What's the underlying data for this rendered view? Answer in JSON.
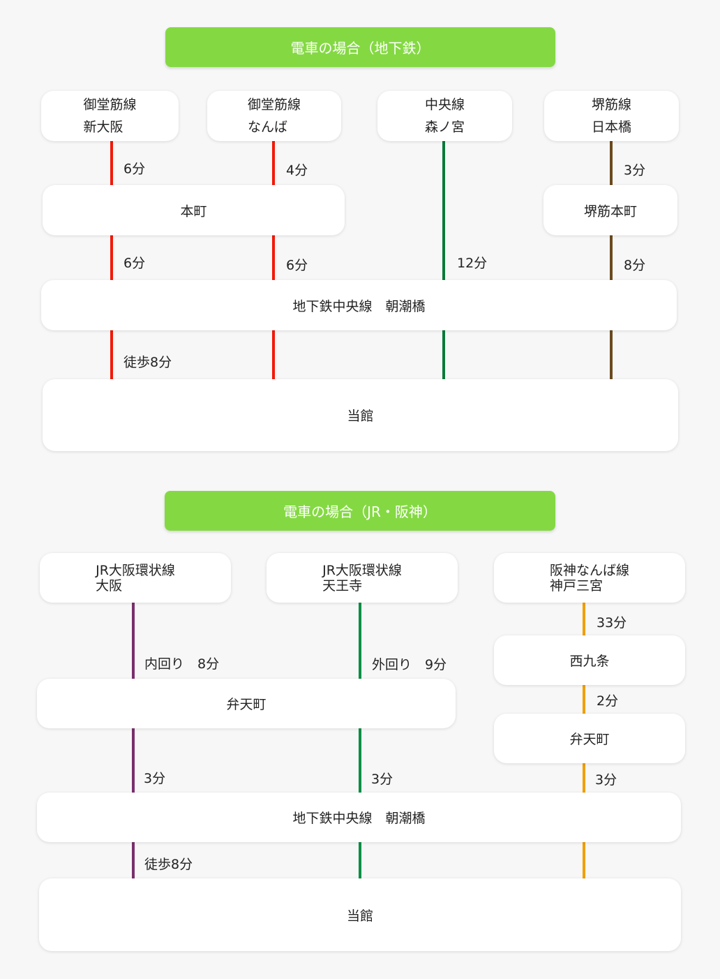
{
  "colors": {
    "header": "#84d943",
    "midosuji": "#f21a0a",
    "chuo": "#0a7a3a",
    "sakaisuji": "#6b4a1e",
    "jr_inner": "#7a2f6e",
    "jr_outer": "#0c8f45",
    "hanshin": "#f0a000"
  },
  "subway": {
    "title": "電車の場合（地下鉄）",
    "origins": [
      {
        "line": "御堂筋線",
        "station": "新大阪"
      },
      {
        "line": "御堂筋線",
        "station": "なんば"
      },
      {
        "line": "中央線",
        "station": "森ノ宮"
      },
      {
        "line": "堺筋線",
        "station": "日本橋"
      }
    ],
    "transfer1": "本町",
    "transfer2": "堺筋本町",
    "hub": "地下鉄中央線　朝潮橋",
    "dest": "当館",
    "times": [
      "6分",
      "4分",
      "3分",
      "6分",
      "6分",
      "12分",
      "8分",
      "徒歩8分"
    ]
  },
  "jr": {
    "title": "電車の場合（JR・阪神）",
    "origins": [
      {
        "line": "JR大阪環状線",
        "station": "大阪"
      },
      {
        "line": "JR大阪環状線",
        "station": "天王寺"
      },
      {
        "line": "阪神なんば線",
        "station": "神戸三宮"
      }
    ],
    "transfer_main": "弁天町",
    "transfer_r1": "西九条",
    "transfer_r2": "弁天町",
    "hub": "地下鉄中央線　朝潮橋",
    "dest": "当館",
    "times": [
      "33分",
      "内回り　8分",
      "外回り　9分",
      "2分",
      "3分",
      "3分",
      "3分",
      "徒歩8分"
    ]
  }
}
